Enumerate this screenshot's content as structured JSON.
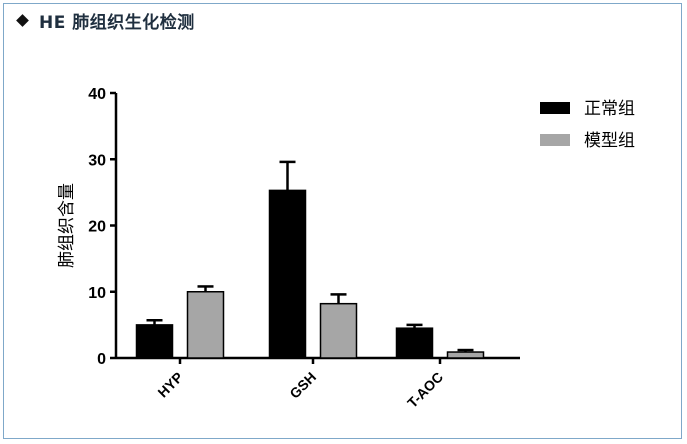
{
  "header": {
    "title": "HE 肺组织生化检测",
    "marker_icon": "diamond-bullet-icon"
  },
  "chart_data": {
    "type": "bar",
    "title": "",
    "xlabel": "",
    "ylabel": "肺组织含量",
    "ylim": [
      0,
      40
    ],
    "yticks": [
      0,
      10,
      20,
      30,
      40
    ],
    "categories": [
      "HYP",
      "GSH",
      "T-AOC"
    ],
    "series": [
      {
        "name": "正常组",
        "color": "#000000",
        "values": [
          5.0,
          25.3,
          4.5
        ],
        "errors": [
          0.7,
          4.3,
          0.5
        ]
      },
      {
        "name": "模型组",
        "color": "#a6a6a6",
        "values": [
          10.0,
          8.2,
          0.9
        ],
        "errors": [
          0.8,
          1.4,
          0.3
        ]
      }
    ],
    "error_bars": true,
    "legend_position": "top-right",
    "grid": false
  },
  "colors": {
    "frame_border": "#7fa8c9",
    "title_text": "#1f2f3f"
  }
}
